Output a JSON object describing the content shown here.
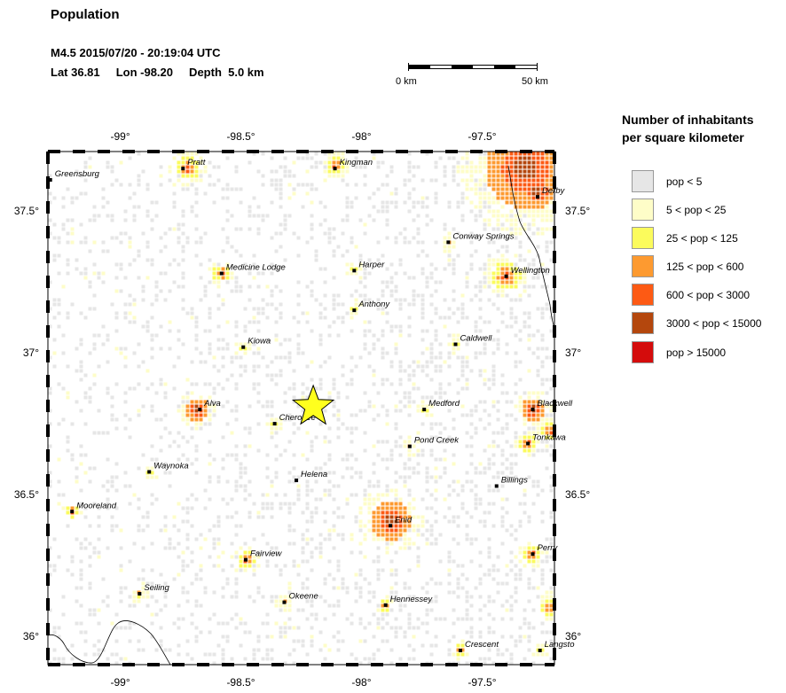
{
  "header": {
    "title": "Population",
    "event_line": "M4.5  2015/07/20 - 20:19:04 UTC",
    "location_line": "Lat 36.81     Lon -98.20     Depth  5.0 km"
  },
  "scale": {
    "start_label": "0 km",
    "end_label": "50 km"
  },
  "legend": {
    "title_line1": "Number of inhabitants",
    "title_line2": "per square kilometer",
    "items": [
      {
        "label": "pop < 5",
        "color": "#e6e6e6"
      },
      {
        "label": "5 < pop < 25",
        "color": "#fefdc8"
      },
      {
        "label": "25 < pop < 125",
        "color": "#fbfb5c"
      },
      {
        "label": "125 < pop < 600",
        "color": "#fd9a30"
      },
      {
        "label": "600 < pop < 3000",
        "color": "#fd5a14"
      },
      {
        "label": "3000 < pop < 15000",
        "color": "#b4470d"
      },
      {
        "label": "pop > 15000",
        "color": "#d40c0c"
      }
    ]
  },
  "map": {
    "lon_range": [
      -99.3,
      -97.2
    ],
    "lat_range": [
      35.9,
      37.71
    ],
    "lon_ticks": [
      {
        "value": -99,
        "label": "-99°"
      },
      {
        "value": -98.5,
        "label": "-98.5°"
      },
      {
        "value": -98,
        "label": "-98°"
      },
      {
        "value": -97.5,
        "label": "-97.5°"
      }
    ],
    "lat_ticks": [
      {
        "value": 37.5,
        "label": "37.5°"
      },
      {
        "value": 37,
        "label": "37°"
      },
      {
        "value": 36.5,
        "label": "36.5°"
      },
      {
        "value": 36,
        "label": "36°"
      }
    ],
    "epicenter": {
      "lon": -98.2,
      "lat": 36.81
    },
    "cities": [
      {
        "name": "Greensburg",
        "lon": -99.29,
        "lat": 37.61
      },
      {
        "name": "Pratt",
        "lon": -98.74,
        "lat": 37.65
      },
      {
        "name": "Kingman",
        "lon": -98.11,
        "lat": 37.65
      },
      {
        "name": "Derby",
        "lon": -97.27,
        "lat": 37.55
      },
      {
        "name": "Conway Springs",
        "lon": -97.64,
        "lat": 37.39
      },
      {
        "name": "Medicine Lodge",
        "lon": -98.58,
        "lat": 37.28
      },
      {
        "name": "Harper",
        "lon": -98.03,
        "lat": 37.29
      },
      {
        "name": "Wellington",
        "lon": -97.4,
        "lat": 37.27
      },
      {
        "name": "Anthony",
        "lon": -98.03,
        "lat": 37.15
      },
      {
        "name": "Caldwell",
        "lon": -97.61,
        "lat": 37.03
      },
      {
        "name": "Kiowa",
        "lon": -98.49,
        "lat": 37.02
      },
      {
        "name": "Alva",
        "lon": -98.67,
        "lat": 36.8
      },
      {
        "name": "Medford",
        "lon": -97.74,
        "lat": 36.8
      },
      {
        "name": "Blackwell",
        "lon": -97.29,
        "lat": 36.8
      },
      {
        "name": "Cherokee",
        "lon": -98.36,
        "lat": 36.75
      },
      {
        "name": "Pond Creek",
        "lon": -97.8,
        "lat": 36.67
      },
      {
        "name": "Tonkawa",
        "lon": -97.31,
        "lat": 36.68
      },
      {
        "name": "Waynoka",
        "lon": -98.88,
        "lat": 36.58
      },
      {
        "name": "Helena",
        "lon": -98.27,
        "lat": 36.55
      },
      {
        "name": "Billings",
        "lon": -97.44,
        "lat": 36.53
      },
      {
        "name": "Mooreland",
        "lon": -99.2,
        "lat": 36.44
      },
      {
        "name": "Enid",
        "lon": -97.88,
        "lat": 36.39
      },
      {
        "name": "Fairview",
        "lon": -98.48,
        "lat": 36.27
      },
      {
        "name": "Perry",
        "lon": -97.29,
        "lat": 36.29
      },
      {
        "name": "Seiling",
        "lon": -98.92,
        "lat": 36.15
      },
      {
        "name": "Okeene",
        "lon": -98.32,
        "lat": 36.12
      },
      {
        "name": "Hennessey",
        "lon": -97.9,
        "lat": 36.11
      },
      {
        "name": "Crescent",
        "lon": -97.59,
        "lat": 35.95
      },
      {
        "name": "Langsto",
        "lon": -97.26,
        "lat": 35.95
      }
    ],
    "hotspots": [
      {
        "lon": -97.88,
        "lat": 36.41,
        "r": 0.07,
        "level": 5
      },
      {
        "lon": -97.4,
        "lat": 37.27,
        "r": 0.05,
        "level": 4
      },
      {
        "lon": -97.32,
        "lat": 37.65,
        "r": 0.14,
        "level": 5
      },
      {
        "lon": -97.27,
        "lat": 37.57,
        "r": 0.06,
        "level": 5
      },
      {
        "lon": -98.72,
        "lat": 37.65,
        "r": 0.04,
        "level": 4
      },
      {
        "lon": -98.68,
        "lat": 36.8,
        "r": 0.04,
        "level": 5
      },
      {
        "lon": -97.29,
        "lat": 36.8,
        "r": 0.04,
        "level": 5
      },
      {
        "lon": -97.31,
        "lat": 36.68,
        "r": 0.03,
        "level": 4
      },
      {
        "lon": -97.29,
        "lat": 36.29,
        "r": 0.03,
        "level": 4
      },
      {
        "lon": -98.48,
        "lat": 36.27,
        "r": 0.03,
        "level": 4
      },
      {
        "lon": -98.58,
        "lat": 37.28,
        "r": 0.03,
        "level": 4
      },
      {
        "lon": -97.22,
        "lat": 36.72,
        "r": 0.03,
        "level": 4
      },
      {
        "lon": -97.22,
        "lat": 36.1,
        "r": 0.03,
        "level": 4
      },
      {
        "lon": -99.2,
        "lat": 36.44,
        "r": 0.02,
        "level": 4
      },
      {
        "lon": -98.88,
        "lat": 36.58,
        "r": 0.02,
        "level": 3
      },
      {
        "lon": -98.36,
        "lat": 36.75,
        "r": 0.02,
        "level": 3
      },
      {
        "lon": -98.03,
        "lat": 37.15,
        "r": 0.02,
        "level": 3
      },
      {
        "lon": -98.11,
        "lat": 37.66,
        "r": 0.03,
        "level": 4
      },
      {
        "lon": -97.9,
        "lat": 36.11,
        "r": 0.02,
        "level": 4
      },
      {
        "lon": -98.32,
        "lat": 36.12,
        "r": 0.02,
        "level": 3
      },
      {
        "lon": -98.92,
        "lat": 36.15,
        "r": 0.02,
        "level": 3
      },
      {
        "lon": -97.59,
        "lat": 35.95,
        "r": 0.02,
        "level": 4
      },
      {
        "lon": -97.26,
        "lat": 35.95,
        "r": 0.02,
        "level": 3
      },
      {
        "lon": -97.74,
        "lat": 36.8,
        "r": 0.02,
        "level": 3
      },
      {
        "lon": -97.8,
        "lat": 36.67,
        "r": 0.02,
        "level": 3
      },
      {
        "lon": -97.61,
        "lat": 37.03,
        "r": 0.02,
        "level": 3
      },
      {
        "lon": -98.49,
        "lat": 37.02,
        "r": 0.02,
        "level": 3
      },
      {
        "lon": -98.03,
        "lat": 37.29,
        "r": 0.02,
        "level": 3
      },
      {
        "lon": -97.64,
        "lat": 37.39,
        "r": 0.02,
        "level": 3
      }
    ]
  }
}
